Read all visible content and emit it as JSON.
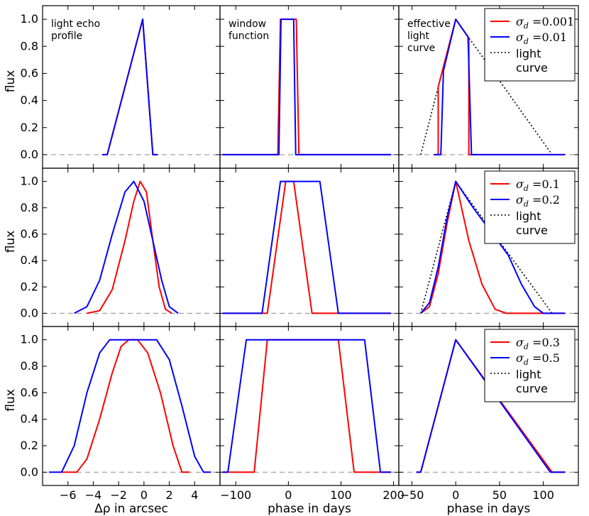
{
  "figure_title": "",
  "chart_data": [
    {
      "type": "line",
      "row": 0,
      "col": 0,
      "panel_label": [
        "light echo",
        "profile"
      ],
      "ylabel": "flux",
      "xlabel": "",
      "xlim": [
        -8,
        6
      ],
      "ylim": [
        -0.1,
        1.1
      ],
      "series": [
        {
          "name": "sigma_d=0.001",
          "color": "#ff0000",
          "x": [
            -3.3,
            -2.9,
            -0.1,
            0.7,
            1.1
          ],
          "y": [
            0,
            0,
            1,
            0,
            0
          ]
        },
        {
          "name": "sigma_d=0.01",
          "color": "#0000ff",
          "x": [
            -3.3,
            -2.9,
            -0.1,
            0.7,
            1.1
          ],
          "y": [
            0,
            0,
            1,
            0,
            0
          ]
        }
      ]
    },
    {
      "type": "line",
      "row": 0,
      "col": 1,
      "panel_label": [
        "window",
        "function"
      ],
      "ylabel": "",
      "xlabel": "",
      "xlim": [
        -130,
        210
      ],
      "ylim": [
        -0.1,
        1.1
      ],
      "series": [
        {
          "name": "sigma_d=0.001",
          "color": "#ff0000",
          "x": [
            -125,
            -20,
            -15,
            15,
            20,
            195
          ],
          "y": [
            0,
            0,
            1,
            1,
            0,
            0
          ]
        },
        {
          "name": "sigma_d=0.01",
          "color": "#0000ff",
          "x": [
            -125,
            -18,
            -14,
            10,
            14,
            195
          ],
          "y": [
            0,
            0,
            1,
            1,
            0,
            0
          ]
        }
      ]
    },
    {
      "type": "line",
      "row": 0,
      "col": 2,
      "panel_label": [
        "effective",
        "light",
        "curve"
      ],
      "ylabel": "",
      "xlabel": "",
      "xlim": [
        -65,
        140
      ],
      "ylim": [
        -0.1,
        1.1
      ],
      "legend": [
        {
          "sym": "σ",
          "sub": "d",
          "val": " =0.001",
          "color": "#ff0000",
          "style": "solid"
        },
        {
          "sym": "σ",
          "sub": "d",
          "val": " =0.01",
          "color": "#0000ff",
          "style": "solid"
        },
        {
          "text": [
            "light",
            "curve"
          ],
          "color": "#000000",
          "style": "dotted"
        }
      ],
      "series": [
        {
          "name": "light curve",
          "color": "#000000",
          "dashed": true,
          "x": [
            -40,
            0,
            110
          ],
          "y": [
            0,
            1,
            0
          ]
        },
        {
          "name": "sigma_d=0.001",
          "color": "#ff0000",
          "x": [
            -25,
            -20,
            -20,
            0,
            15,
            15,
            20,
            125
          ],
          "y": [
            0,
            0,
            0.5,
            1,
            0.86,
            0,
            0,
            0
          ]
        },
        {
          "name": "sigma_d=0.01",
          "color": "#0000ff",
          "x": [
            -25,
            -17,
            -14,
            0,
            14,
            18,
            22,
            125
          ],
          "y": [
            0,
            0,
            0.62,
            1,
            0.87,
            0,
            0,
            0
          ]
        }
      ]
    },
    {
      "type": "line",
      "row": 1,
      "col": 0,
      "panel_label": [],
      "ylabel": "flux",
      "xlabel": "",
      "xlim": [
        -8,
        6
      ],
      "ylim": [
        -0.1,
        1.1
      ],
      "series": [
        {
          "name": "sigma_d=0.1",
          "color": "#ff0000",
          "x": [
            -4.5,
            -3.5,
            -2.5,
            -1.5,
            -0.8,
            -0.3,
            0.2,
            0.7,
            1.2,
            1.7,
            2.2
          ],
          "y": [
            0,
            0.02,
            0.18,
            0.55,
            0.85,
            1.0,
            0.92,
            0.55,
            0.2,
            0.03,
            0
          ]
        },
        {
          "name": "sigma_d=0.2",
          "color": "#0000ff",
          "x": [
            -5.5,
            -4.5,
            -3.5,
            -2.5,
            -1.5,
            -0.8,
            0,
            0.7,
            1.4,
            2.0,
            2.7
          ],
          "y": [
            0,
            0.05,
            0.25,
            0.6,
            0.92,
            1.0,
            0.85,
            0.55,
            0.25,
            0.05,
            0
          ]
        }
      ]
    },
    {
      "type": "line",
      "row": 1,
      "col": 1,
      "panel_label": [],
      "ylabel": "",
      "xlabel": "",
      "xlim": [
        -130,
        210
      ],
      "ylim": [
        -0.1,
        1.1
      ],
      "series": [
        {
          "name": "sigma_d=0.1",
          "color": "#ff0000",
          "x": [
            -125,
            -40,
            -5,
            10,
            45,
            195
          ],
          "y": [
            0,
            0,
            1,
            1,
            0,
            0
          ]
        },
        {
          "name": "sigma_d=0.2",
          "color": "#0000ff",
          "x": [
            -125,
            -50,
            -15,
            60,
            95,
            195
          ],
          "y": [
            0,
            0,
            1,
            1,
            0,
            0
          ]
        }
      ]
    },
    {
      "type": "line",
      "row": 1,
      "col": 2,
      "panel_label": [],
      "ylabel": "",
      "xlabel": "",
      "xlim": [
        -65,
        140
      ],
      "ylim": [
        -0.1,
        1.1
      ],
      "legend": [
        {
          "sym": "σ",
          "sub": "d",
          "val": " =0.1",
          "color": "#ff0000",
          "style": "solid"
        },
        {
          "sym": "σ",
          "sub": "d",
          "val": " =0.2",
          "color": "#0000ff",
          "style": "solid"
        },
        {
          "text": [
            "light",
            "curve"
          ],
          "color": "#000000",
          "style": "dotted"
        }
      ],
      "series": [
        {
          "name": "light curve",
          "color": "#000000",
          "dashed": true,
          "x": [
            -40,
            0,
            110
          ],
          "y": [
            0,
            1,
            0
          ]
        },
        {
          "name": "sigma_d=0.1",
          "color": "#ff0000",
          "x": [
            -40,
            -30,
            -20,
            -10,
            0,
            15,
            30,
            45,
            58,
            125
          ],
          "y": [
            0,
            0.05,
            0.3,
            0.68,
            1.0,
            0.55,
            0.22,
            0.03,
            0,
            0
          ]
        },
        {
          "name": "sigma_d=0.2",
          "color": "#0000ff",
          "x": [
            -40,
            -30,
            -20,
            -10,
            0,
            20,
            40,
            60,
            75,
            90,
            100,
            125
          ],
          "y": [
            0,
            0.08,
            0.35,
            0.72,
            1.0,
            0.8,
            0.62,
            0.44,
            0.22,
            0.05,
            0,
            0
          ]
        }
      ]
    },
    {
      "type": "line",
      "row": 2,
      "col": 0,
      "panel_label": [],
      "ylabel": "flux",
      "xlabel": "Δρ in arcsec",
      "xlim": [
        -8,
        6
      ],
      "ylim": [
        -0.1,
        1.1
      ],
      "series": [
        {
          "name": "sigma_d=0.3",
          "color": "#ff0000",
          "x": [
            -6.5,
            -5.3,
            -4.5,
            -3.5,
            -2.5,
            -1.8,
            -1.2,
            -0.5,
            0.3,
            1.3,
            2.3,
            3.0,
            3.6
          ],
          "y": [
            0,
            0,
            0.1,
            0.4,
            0.75,
            0.95,
            1.0,
            1.0,
            0.9,
            0.6,
            0.2,
            0,
            0
          ]
        },
        {
          "name": "sigma_d=0.5",
          "color": "#0000ff",
          "x": [
            -7.5,
            -6.5,
            -5.5,
            -4.5,
            -3.5,
            -2.7,
            -0.5,
            1.0,
            2.0,
            3.0,
            4.0,
            4.7,
            5.3
          ],
          "y": [
            0,
            0,
            0.2,
            0.6,
            0.9,
            1.0,
            1.0,
            1.0,
            0.85,
            0.5,
            0.12,
            0,
            0
          ]
        }
      ]
    },
    {
      "type": "line",
      "row": 2,
      "col": 1,
      "panel_label": [],
      "ylabel": "",
      "xlabel": "phase in days",
      "xlim": [
        -130,
        210
      ],
      "ylim": [
        -0.1,
        1.1
      ],
      "series": [
        {
          "name": "sigma_d=0.3",
          "color": "#ff0000",
          "x": [
            -125,
            -65,
            -40,
            95,
            125,
            195
          ],
          "y": [
            0,
            0,
            1,
            1,
            0,
            0
          ]
        },
        {
          "name": "sigma_d=0.5",
          "color": "#0000ff",
          "x": [
            -125,
            -115,
            -80,
            145,
            175,
            195
          ],
          "y": [
            0,
            0,
            1,
            1,
            0,
            0
          ]
        }
      ]
    },
    {
      "type": "line",
      "row": 2,
      "col": 2,
      "panel_label": [],
      "ylabel": "",
      "xlabel": "phase in days",
      "xlim": [
        -65,
        140
      ],
      "ylim": [
        -0.1,
        1.1
      ],
      "legend": [
        {
          "sym": "σ",
          "sub": "d",
          "val": " =0.3",
          "color": "#ff0000",
          "style": "solid"
        },
        {
          "sym": "σ",
          "sub": "d",
          "val": " =0.5",
          "color": "#0000ff",
          "style": "solid"
        },
        {
          "text": [
            "light",
            "curve"
          ],
          "color": "#000000",
          "style": "dotted"
        }
      ],
      "series": [
        {
          "name": "light curve",
          "color": "#000000",
          "dashed": true,
          "x": [
            -40,
            0,
            110
          ],
          "y": [
            0,
            1,
            0
          ]
        },
        {
          "name": "sigma_d=0.3",
          "color": "#ff0000",
          "x": [
            -45,
            -40,
            0,
            110,
            125
          ],
          "y": [
            0,
            0,
            1,
            0,
            0
          ]
        },
        {
          "name": "sigma_d=0.5",
          "color": "#0000ff",
          "x": [
            -45,
            -40,
            0,
            108,
            125
          ],
          "y": [
            0,
            0,
            1,
            0,
            0
          ]
        }
      ]
    }
  ],
  "y_ticks": [
    "0.0",
    "0.2",
    "0.4",
    "0.6",
    "0.8",
    "1.0"
  ],
  "x_ticks_rho": [
    "−6",
    "−4",
    "−2",
    "0",
    "2",
    "4"
  ],
  "x_ticks_window": [
    "−100",
    "0",
    "100",
    "200"
  ],
  "x_ticks_curve": [
    "−50",
    "0",
    "50",
    "100"
  ]
}
